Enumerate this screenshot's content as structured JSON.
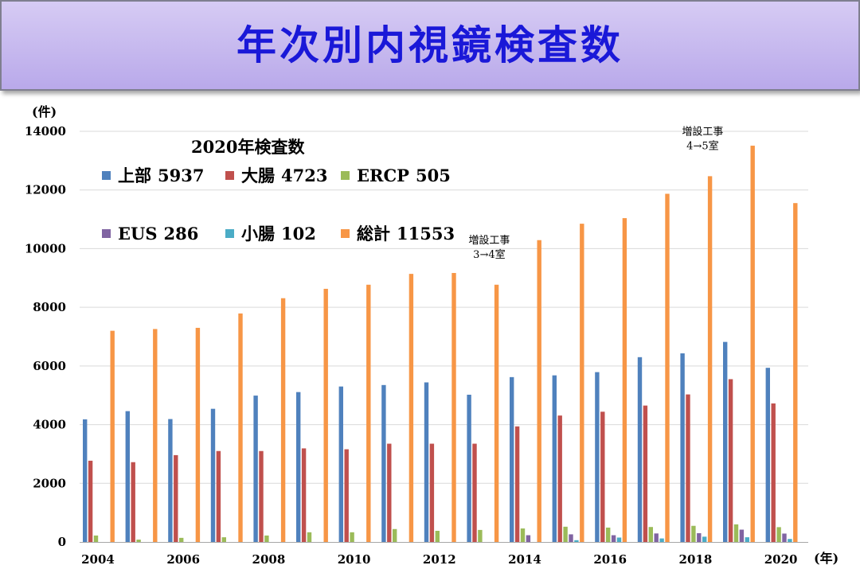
{
  "header": {
    "title": "年次別内視鏡検査数"
  },
  "chart_data": {
    "type": "bar",
    "y_unit": "(件)",
    "x_unit": "(年)",
    "ylim": [
      0,
      14000
    ],
    "yticks": [
      0,
      2000,
      4000,
      6000,
      8000,
      10000,
      12000,
      14000
    ],
    "x": [
      2004,
      2005,
      2006,
      2007,
      2008,
      2009,
      2010,
      2011,
      2012,
      2013,
      2014,
      2015,
      2016,
      2017,
      2018,
      2019,
      2020
    ],
    "x_tick_labels": [
      "2004",
      "2006",
      "2008",
      "2010",
      "2012",
      "2014",
      "2016",
      "2018",
      "2020"
    ],
    "grid": true,
    "legend_title": "2020年検査数",
    "series": [
      {
        "name": "上部",
        "legend_value": "5937",
        "color": "#4f81bd",
        "values": [
          4180,
          4460,
          4190,
          4540,
          4990,
          5110,
          5300,
          5350,
          5440,
          5020,
          5620,
          5680,
          5790,
          6300,
          6430,
          6820,
          5937
        ]
      },
      {
        "name": "大腸",
        "legend_value": "4723",
        "color": "#c0504d",
        "values": [
          2770,
          2720,
          2960,
          3100,
          3100,
          3190,
          3160,
          3350,
          3350,
          3350,
          3940,
          4310,
          4440,
          4650,
          5030,
          5550,
          4723
        ]
      },
      {
        "name": "ERCP",
        "legend_value": "505",
        "color": "#9bbb59",
        "values": [
          220,
          80,
          140,
          160,
          220,
          330,
          330,
          440,
          380,
          410,
          460,
          520,
          490,
          510,
          550,
          600,
          505
        ]
      },
      {
        "name": "EUS",
        "legend_value": "286",
        "color": "#8064a2",
        "values": [
          0,
          0,
          0,
          0,
          0,
          0,
          0,
          0,
          0,
          0,
          230,
          260,
          230,
          290,
          300,
          420,
          286
        ]
      },
      {
        "name": "小腸",
        "legend_value": "102",
        "color": "#4bacc6",
        "values": [
          0,
          0,
          0,
          0,
          0,
          0,
          0,
          0,
          0,
          0,
          0,
          60,
          150,
          120,
          180,
          160,
          102
        ]
      },
      {
        "name": "総計",
        "legend_value": "11553",
        "color": "#f79646",
        "values": [
          7200,
          7260,
          7300,
          7790,
          8310,
          8630,
          8770,
          9140,
          9170,
          8770,
          10290,
          10850,
          11040,
          11870,
          12470,
          13510,
          11553
        ]
      }
    ],
    "annotations": [
      {
        "line1": "増設工事",
        "line2": "3→4室",
        "x": 2013
      },
      {
        "line1": "増設工事",
        "line2": "4→5室",
        "x": 2018
      }
    ]
  }
}
